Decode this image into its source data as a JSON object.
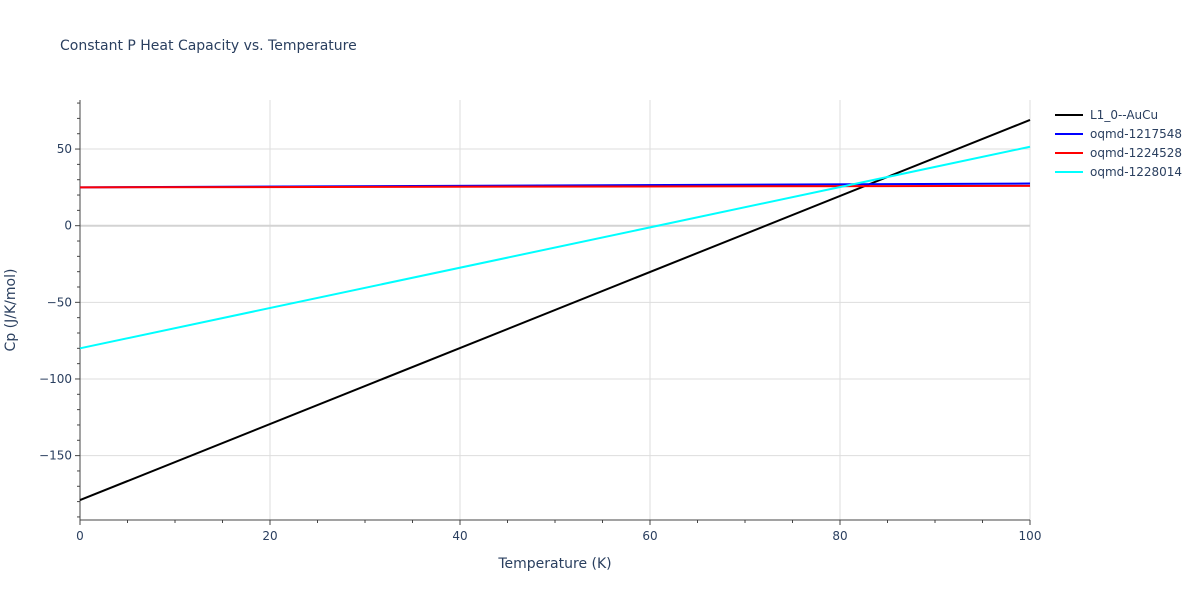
{
  "chart_data": {
    "type": "line",
    "title": "Constant P Heat Capacity vs. Temperature",
    "xlabel": "Temperature (K)",
    "ylabel": "Cp (J/K/mol)",
    "xlim": [
      0,
      100
    ],
    "ylim": [
      -192,
      82
    ],
    "xticks": [
      0,
      20,
      40,
      60,
      80,
      100
    ],
    "yticks": [
      -150,
      -100,
      -50,
      0,
      50
    ],
    "grid": true,
    "legend_position": "top-right",
    "series": [
      {
        "name": "L1_0--AuCu",
        "color": "#000000",
        "x": [
          0,
          100
        ],
        "y": [
          -179,
          69
        ]
      },
      {
        "name": "oqmd-1217548",
        "color": "#0000ff",
        "x": [
          0,
          100
        ],
        "y": [
          25,
          27.5
        ]
      },
      {
        "name": "oqmd-1224528",
        "color": "#ff0000",
        "x": [
          0,
          100
        ],
        "y": [
          25,
          26
        ]
      },
      {
        "name": "oqmd-1228014",
        "color": "#00ffff",
        "x": [
          0,
          100
        ],
        "y": [
          -80,
          51.5
        ]
      }
    ]
  }
}
